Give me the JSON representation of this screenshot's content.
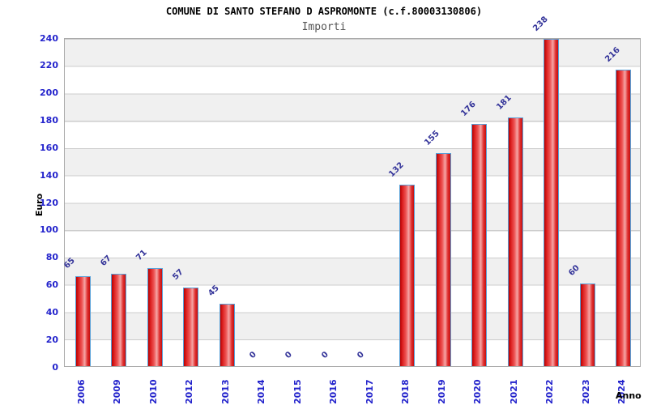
{
  "title": "COMUNE DI SANTO STEFANO D ASPROMONTE (c.f.80003130806)",
  "subtitle": "Importi",
  "chart_data": {
    "type": "bar",
    "title": "COMUNE DI SANTO STEFANO D ASPROMONTE (c.f.80003130806)",
    "subtitle": "Importi",
    "xlabel": "Anno",
    "ylabel": "Euro",
    "categories": [
      "2006",
      "2009",
      "2010",
      "2012",
      "2013",
      "2014",
      "2015",
      "2016",
      "2017",
      "2018",
      "2019",
      "2020",
      "2021",
      "2022",
      "2023",
      "2024"
    ],
    "values": [
      65,
      67,
      71,
      57,
      45,
      0,
      0,
      0,
      0,
      132,
      155,
      176,
      181,
      238,
      60,
      216
    ],
    "ylim": [
      0,
      240
    ],
    "y_ticks": [
      0,
      20,
      40,
      60,
      80,
      100,
      120,
      140,
      160,
      180,
      200,
      220,
      240
    ],
    "grid": "horizontal-gridlines-with-alternating-bands",
    "legend_position": "none",
    "bar_labels_shown": true,
    "bar_label_rotation_deg": -45,
    "x_tick_rotation_deg": -90
  },
  "colors": {
    "bar_fill_dark": "#c41010",
    "bar_fill_mid": "#ee5555",
    "bar_fill_highlight": "#f5a6a6",
    "bar_border": "#58a0d8",
    "tick_label": "#2323cc",
    "value_label": "#333399",
    "title_color": "#000000",
    "subtitle_color": "#555555",
    "band_gray": "#f0f0f0",
    "band_white": "#ffffff",
    "grid_line": "#cccccc",
    "plot_border": "#aaaaaa"
  }
}
